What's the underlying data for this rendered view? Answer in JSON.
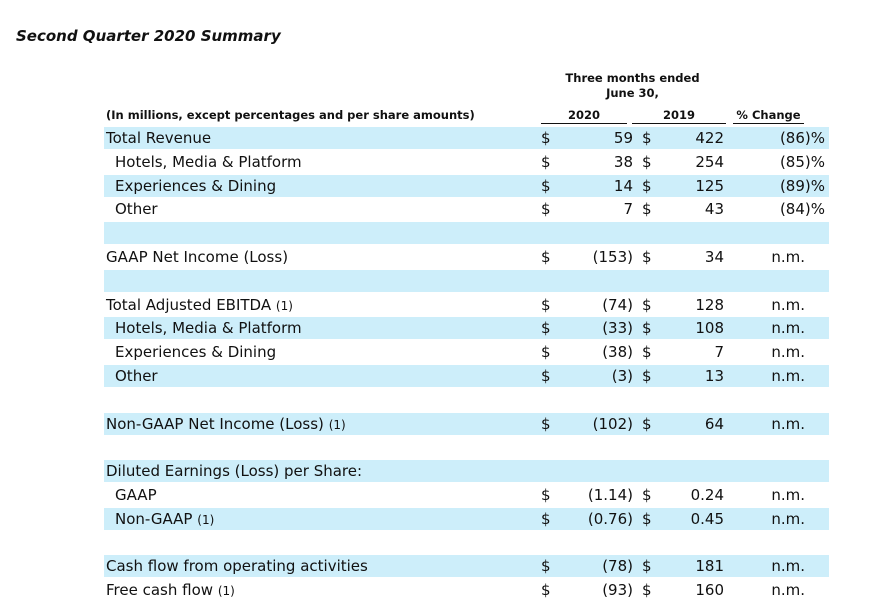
{
  "title": "Second Quarter 2020 Summary",
  "header": {
    "period_line1": "Three months ended",
    "period_line2": "June 30,",
    "note": "(In millions, except percentages and per share amounts)",
    "col_2020": "2020",
    "col_2019": "2019",
    "col_change": "% Change"
  },
  "rows": [
    {
      "label": "Total Revenue",
      "note": "",
      "indent": false,
      "shaded": true,
      "d1": "$",
      "v2020": "59",
      "d2": "$",
      "v2019": "422",
      "change": "(86)%"
    },
    {
      "label": "Hotels, Media & Platform",
      "note": "",
      "indent": true,
      "shaded": false,
      "d1": "$",
      "v2020": "38",
      "d2": "$",
      "v2019": "254",
      "change": "(85)%"
    },
    {
      "label": "Experiences & Dining",
      "note": "",
      "indent": true,
      "shaded": true,
      "d1": "$",
      "v2020": "14",
      "d2": "$",
      "v2019": "125",
      "change": "(89)%"
    },
    {
      "label": "Other",
      "note": "",
      "indent": true,
      "shaded": false,
      "d1": "$",
      "v2020": "7",
      "d2": "$",
      "v2019": "43",
      "change": "(84)%"
    },
    {
      "label": "",
      "note": "",
      "indent": false,
      "shaded": true,
      "d1": "",
      "v2020": "",
      "d2": "",
      "v2019": "",
      "change": ""
    },
    {
      "label": "GAAP Net Income (Loss)",
      "note": "",
      "indent": false,
      "shaded": false,
      "d1": "$",
      "v2020": "(153)",
      "d2": "$",
      "v2019": "34",
      "change": "n.m."
    },
    {
      "label": "",
      "note": "",
      "indent": false,
      "shaded": true,
      "d1": "",
      "v2020": "",
      "d2": "",
      "v2019": "",
      "change": ""
    },
    {
      "label": "Total Adjusted EBITDA",
      "note": "(1)",
      "indent": false,
      "shaded": false,
      "d1": "$",
      "v2020": "(74)",
      "d2": "$",
      "v2019": "128",
      "change": "n.m."
    },
    {
      "label": "Hotels, Media & Platform",
      "note": "",
      "indent": true,
      "shaded": true,
      "d1": "$",
      "v2020": "(33)",
      "d2": "$",
      "v2019": "108",
      "change": "n.m."
    },
    {
      "label": "Experiences & Dining",
      "note": "",
      "indent": true,
      "shaded": false,
      "d1": "$",
      "v2020": "(38)",
      "d2": "$",
      "v2019": "7",
      "change": "n.m."
    },
    {
      "label": "Other",
      "note": "",
      "indent": true,
      "shaded": true,
      "d1": "$",
      "v2020": "(3)",
      "d2": "$",
      "v2019": "13",
      "change": "n.m."
    },
    {
      "label": "",
      "note": "",
      "indent": false,
      "shaded": false,
      "d1": "",
      "v2020": "",
      "d2": "",
      "v2019": "",
      "change": ""
    },
    {
      "label": "Non-GAAP Net Income (Loss)",
      "note": "(1)",
      "indent": false,
      "shaded": true,
      "d1": "$",
      "v2020": "(102)",
      "d2": "$",
      "v2019": "64",
      "change": "n.m."
    },
    {
      "label": "",
      "note": "",
      "indent": false,
      "shaded": false,
      "d1": "",
      "v2020": "",
      "d2": "",
      "v2019": "",
      "change": ""
    },
    {
      "label": "Diluted Earnings (Loss) per Share:",
      "note": "",
      "indent": false,
      "shaded": true,
      "d1": "",
      "v2020": "",
      "d2": "",
      "v2019": "",
      "change": ""
    },
    {
      "label": "GAAP",
      "note": "",
      "indent": true,
      "shaded": false,
      "d1": "$",
      "v2020": "(1.14)",
      "d2": "$",
      "v2019": "0.24",
      "change": "n.m."
    },
    {
      "label": "Non-GAAP",
      "note": "(1)",
      "indent": true,
      "shaded": true,
      "d1": "$",
      "v2020": "(0.76)",
      "d2": "$",
      "v2019": "0.45",
      "change": "n.m."
    },
    {
      "label": "",
      "note": "",
      "indent": false,
      "shaded": false,
      "d1": "",
      "v2020": "",
      "d2": "",
      "v2019": "",
      "change": ""
    },
    {
      "label": "Cash flow from operating activities",
      "note": "",
      "indent": false,
      "shaded": true,
      "d1": "$",
      "v2020": "(78)",
      "d2": "$",
      "v2019": "181",
      "change": "n.m."
    },
    {
      "label": "Free cash flow",
      "note": "(1)",
      "indent": false,
      "shaded": false,
      "d1": "$",
      "v2020": "(93)",
      "d2": "$",
      "v2019": "160",
      "change": "n.m."
    }
  ]
}
